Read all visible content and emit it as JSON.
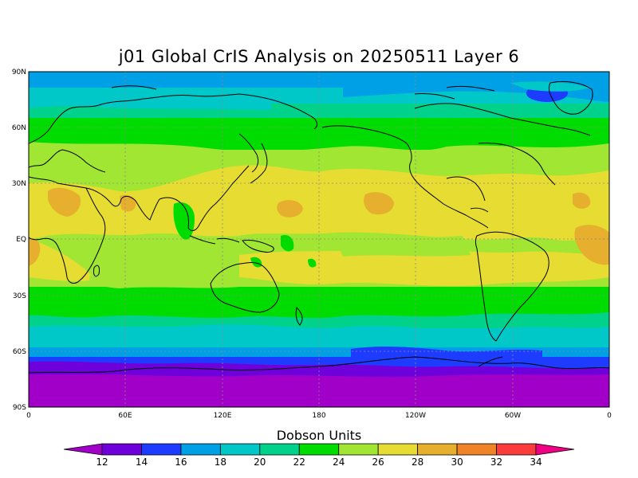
{
  "title": "j01 Global CrIS Analysis on 20250511 Layer 6",
  "colorbar": {
    "title": "Dobson Units",
    "labels": [
      "12",
      "14",
      "16",
      "18",
      "20",
      "22",
      "24",
      "26",
      "28",
      "30",
      "32",
      "34"
    ],
    "colors": [
      "#a000c8",
      "#6e00dc",
      "#1e3cff",
      "#00a0e6",
      "#00c8c8",
      "#00d28c",
      "#00dc00",
      "#a0e632",
      "#e6dc32",
      "#e6af2d",
      "#f08228",
      "#fa3c3c",
      "#f00082"
    ]
  },
  "axes": {
    "lat_labels": [
      "90N",
      "60N",
      "30N",
      "EQ",
      "30S",
      "60S",
      "90S"
    ],
    "lon_labels": [
      "0",
      "60E",
      "120E",
      "180",
      "120W",
      "60W",
      "0"
    ]
  }
}
